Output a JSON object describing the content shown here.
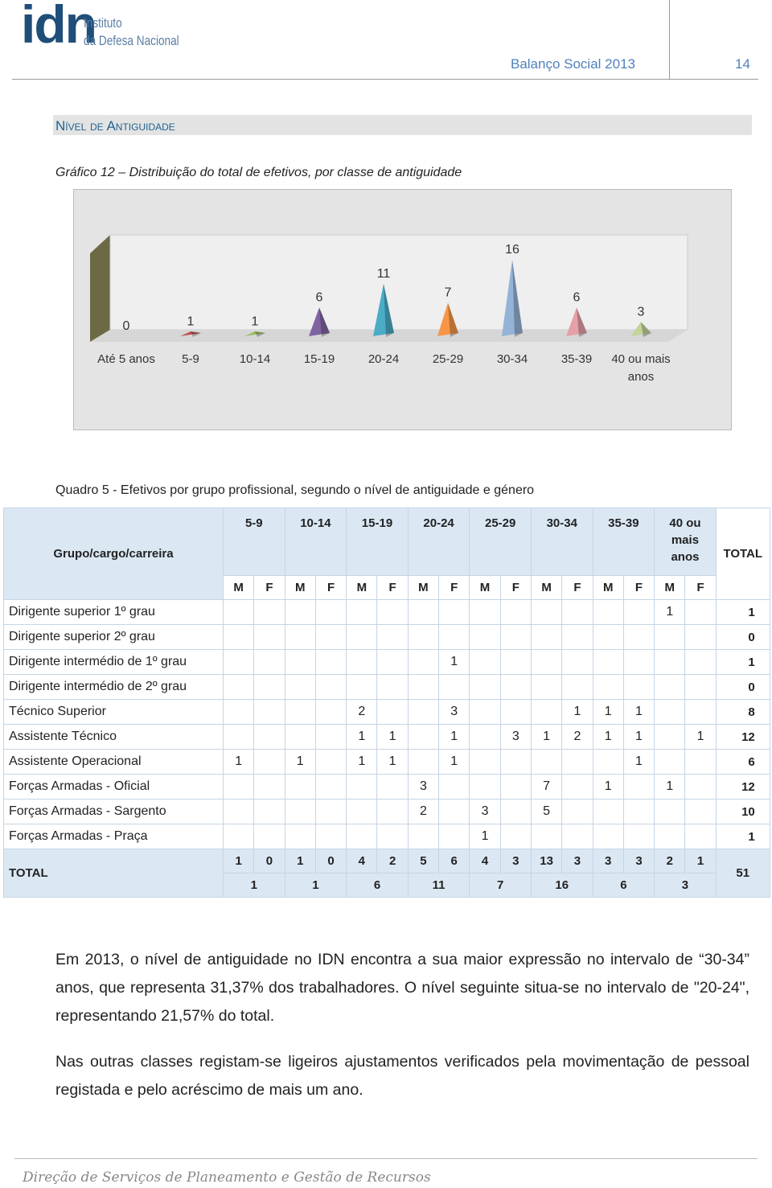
{
  "header": {
    "logo": "idn",
    "institute_line1": "Instituto",
    "institute_line2": "da Defesa Nacional",
    "report_title": "Balanço Social 2013",
    "page_number": "14"
  },
  "section_title": "Nível de Antiguidade",
  "chart_caption": "Gráfico 12 – Distribuição do total de efetivos, por classe de antiguidade",
  "chart_data": {
    "type": "bar",
    "categories": [
      "Até 5 anos",
      "5-9",
      "10-14",
      "15-19",
      "20-24",
      "25-29",
      "30-34",
      "35-39",
      "40 ou mais anos"
    ],
    "values": [
      0,
      1,
      1,
      6,
      11,
      7,
      16,
      6,
      3
    ],
    "colors": [
      "#4f81bd",
      "#c0504d",
      "#9bbb59",
      "#8064a2",
      "#4bacc6",
      "#f79646",
      "#95b3d7",
      "#e6a0a8",
      "#c3d69b"
    ]
  },
  "table": {
    "title": "Quadro 5 - Efetivos por grupo profissional, segundo o nível de antiguidade e género",
    "header": {
      "group_label": "Grupo/cargo/carreira",
      "age_groups": [
        "5-9",
        "10-14",
        "15-19",
        "20-24",
        "25-29",
        "30-34",
        "35-39",
        "40 ou mais anos"
      ],
      "sexes": [
        "M",
        "F"
      ],
      "total_label": "TOTAL"
    },
    "rows": [
      {
        "label": "Dirigente superior 1º grau",
        "values": [
          null,
          null,
          null,
          null,
          null,
          null,
          null,
          null,
          null,
          null,
          null,
          null,
          null,
          null,
          1,
          null
        ],
        "total": 1
      },
      {
        "label": "Dirigente superior 2º grau",
        "values": [
          null,
          null,
          null,
          null,
          null,
          null,
          null,
          null,
          null,
          null,
          null,
          null,
          null,
          null,
          null,
          null
        ],
        "total": 0
      },
      {
        "label": "Dirigente intermédio de 1º grau",
        "values": [
          null,
          null,
          null,
          null,
          null,
          null,
          null,
          1,
          null,
          null,
          null,
          null,
          null,
          null,
          null,
          null
        ],
        "total": 1
      },
      {
        "label": "Dirigente intermédio de 2º grau",
        "values": [
          null,
          null,
          null,
          null,
          null,
          null,
          null,
          null,
          null,
          null,
          null,
          null,
          null,
          null,
          null,
          null
        ],
        "total": 0
      },
      {
        "label": "Técnico Superior",
        "values": [
          null,
          null,
          null,
          null,
          2,
          null,
          null,
          3,
          null,
          null,
          null,
          1,
          1,
          1,
          null,
          null
        ],
        "total": 8
      },
      {
        "label": "Assistente Técnico",
        "values": [
          null,
          null,
          null,
          null,
          1,
          1,
          null,
          1,
          null,
          3,
          1,
          2,
          1,
          1,
          null,
          1
        ],
        "total": 12
      },
      {
        "label": "Assistente Operacional",
        "values": [
          1,
          null,
          1,
          null,
          1,
          1,
          null,
          1,
          null,
          null,
          null,
          null,
          null,
          1,
          null,
          null
        ],
        "total": 6
      },
      {
        "label": "Forças Armadas - Oficial",
        "values": [
          null,
          null,
          null,
          null,
          null,
          null,
          3,
          null,
          null,
          null,
          7,
          null,
          1,
          null,
          1,
          null
        ],
        "total": 12
      },
      {
        "label": "Forças Armadas - Sargento",
        "values": [
          null,
          null,
          null,
          null,
          null,
          null,
          2,
          null,
          3,
          null,
          5,
          null,
          null,
          null,
          null,
          null
        ],
        "total": 10
      },
      {
        "label": "Forças Armadas - Praça",
        "values": [
          null,
          null,
          null,
          null,
          null,
          null,
          null,
          null,
          1,
          null,
          null,
          null,
          null,
          null,
          null,
          null
        ],
        "total": 1
      }
    ],
    "total_row": {
      "label": "TOTAL",
      "values": [
        1,
        0,
        1,
        0,
        4,
        2,
        5,
        6,
        4,
        3,
        13,
        3,
        3,
        3,
        2,
        1
      ],
      "group_totals": [
        1,
        1,
        6,
        11,
        7,
        16,
        6,
        3
      ],
      "total": 51
    }
  },
  "paragraphs": [
    "Em 2013, o nível de antiguidade no IDN encontra a sua maior expressão no intervalo de “30-34” anos, que representa 31,37% dos trabalhadores. O nível seguinte situa-se no intervalo de \"20-24\", representando 21,57% do total.",
    "Nas outras classes registam-se ligeiros ajustamentos verificados pela movimentação de pessoal registada e pelo acréscimo de mais um ano."
  ],
  "footer": "Direção de Serviços de Planeamento e Gestão de Recursos"
}
